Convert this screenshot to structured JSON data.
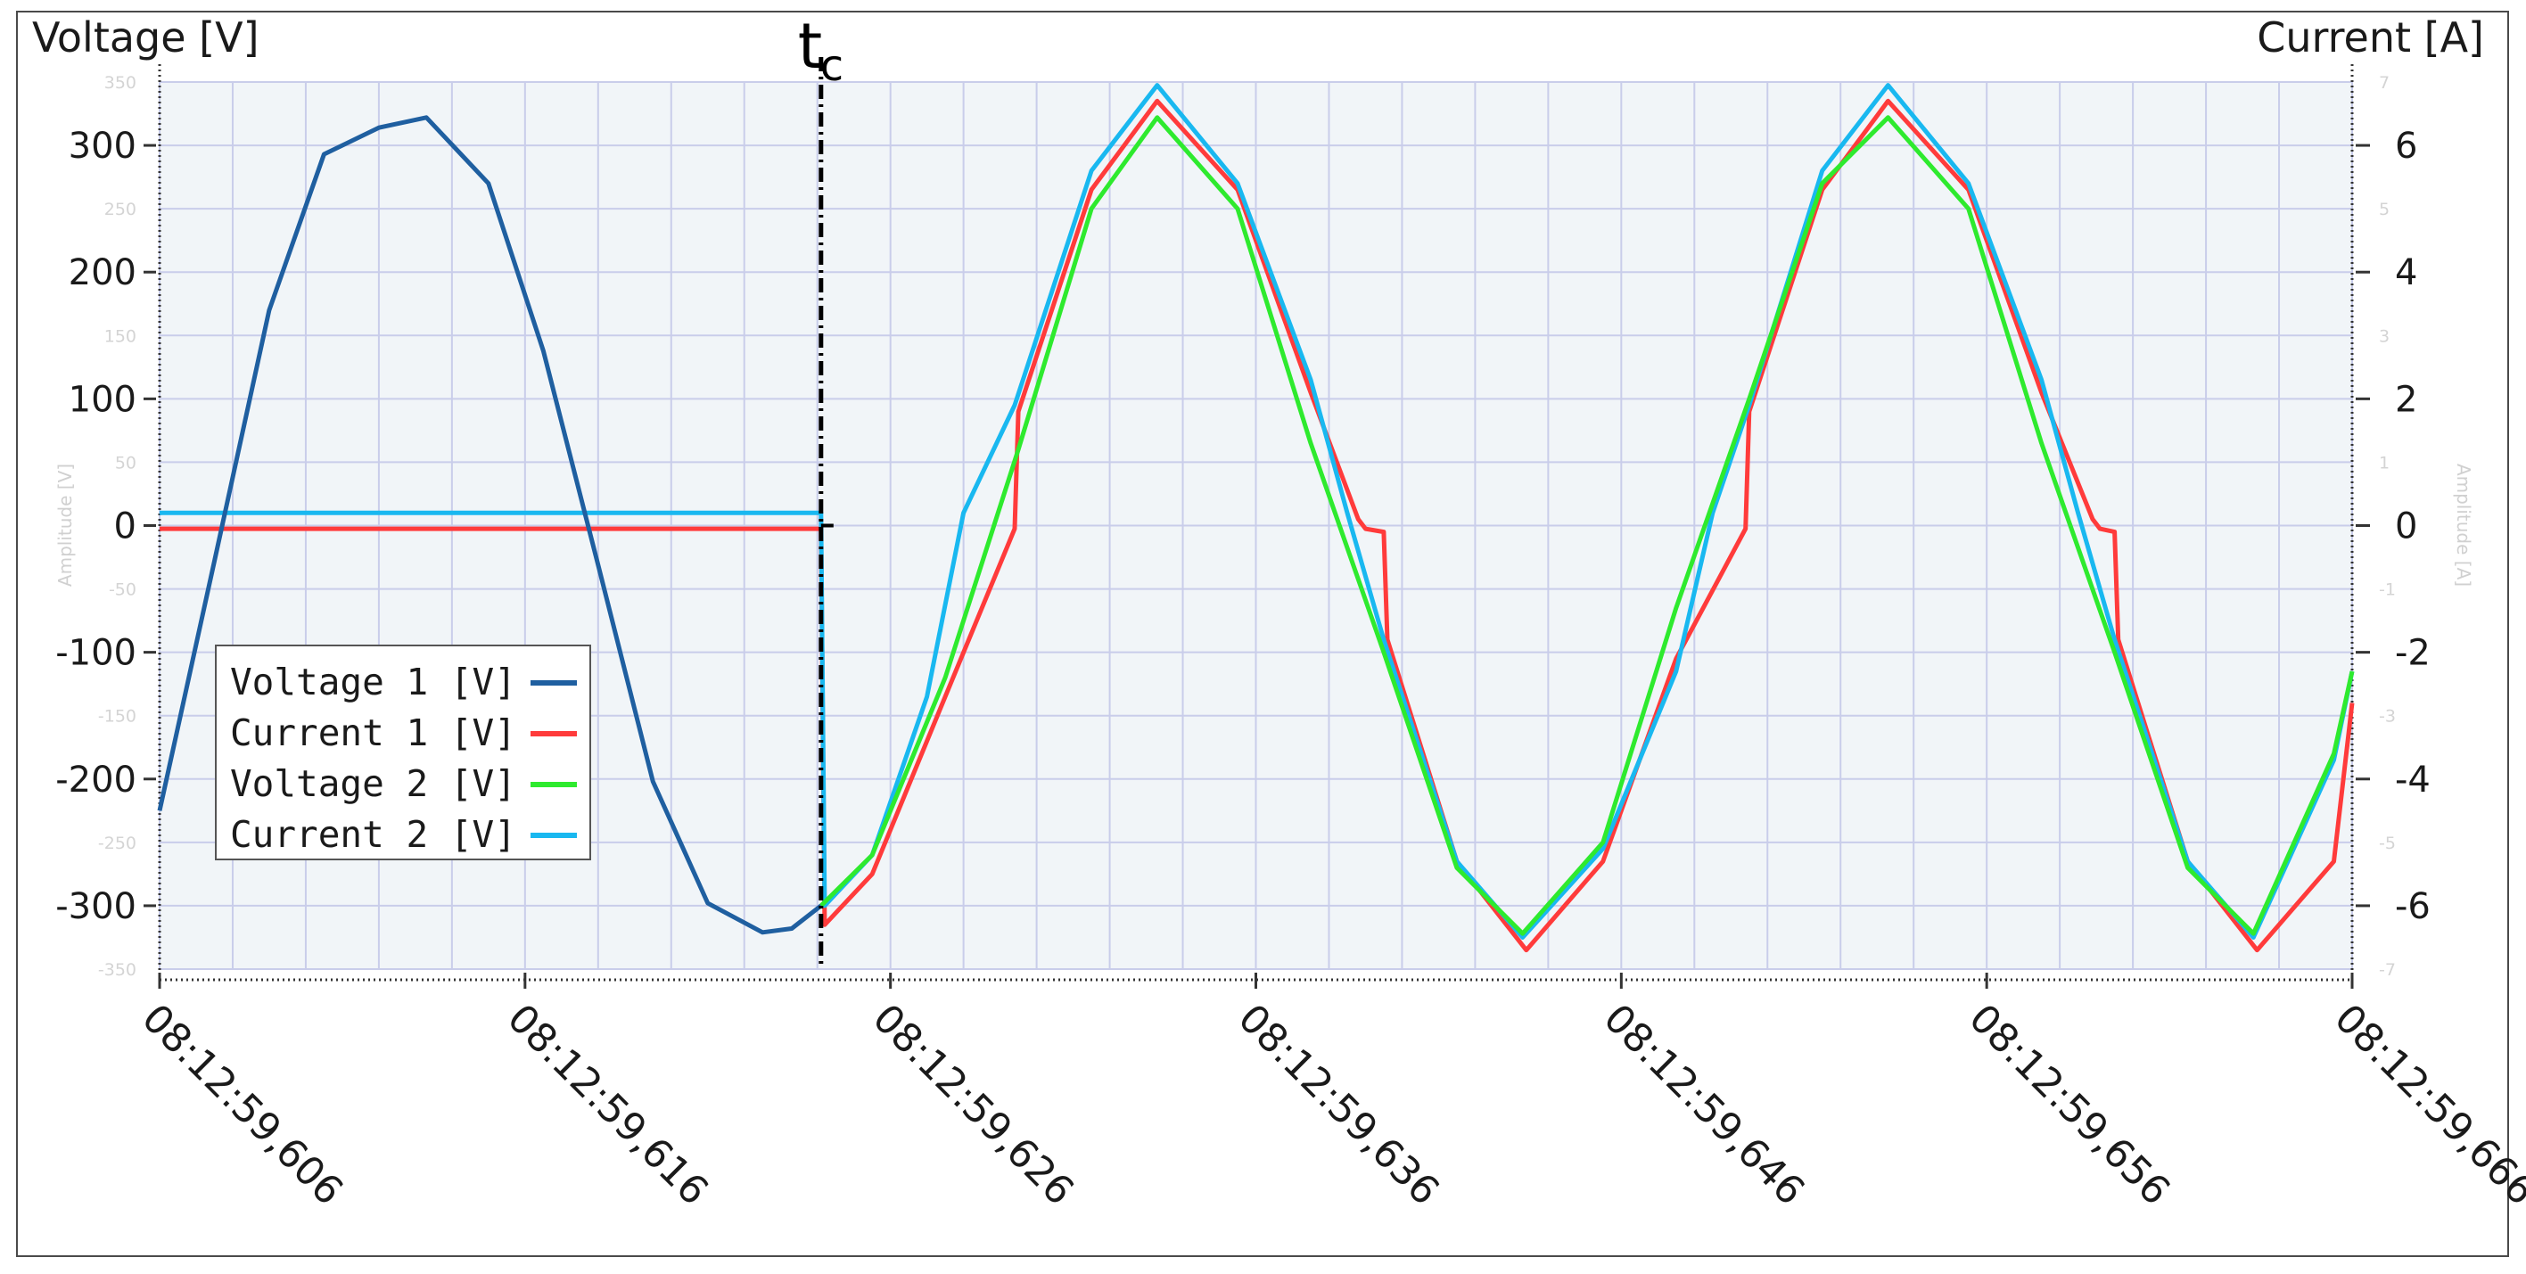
{
  "chart_data": {
    "type": "line",
    "title": "",
    "y_left_label": "Voltage [V]",
    "y_right_label": "Current [A]",
    "y_left_faint_label": "Amplitude [V]",
    "y_right_faint_label": "Amplitude [A]",
    "ylim_left": [
      -350,
      350
    ],
    "ylim_right": [
      -7,
      7
    ],
    "xlim_ms": [
      0,
      60
    ],
    "x_tick_labels": [
      "08:12:59,606",
      "08:12:59,616",
      "08:12:59,626",
      "08:12:59,636",
      "08:12:59,646",
      "08:12:59,656",
      "08:12:59,666"
    ],
    "y_left_major_labels": [
      "300",
      "200",
      "100",
      "0",
      "-100",
      "-200",
      "-300"
    ],
    "y_left_minor_labels": [
      "350",
      "250",
      "150",
      "50",
      "-50",
      "-150",
      "-250",
      "-350"
    ],
    "y_right_major_labels": [
      "6",
      "4",
      "2",
      "0",
      "-2",
      "-4",
      "-6"
    ],
    "y_right_minor_labels": [
      "7",
      "5",
      "3",
      "1",
      "-1",
      "-3",
      "-5",
      "-7"
    ],
    "grid": true,
    "legend_position": "lower-left",
    "annotation": {
      "label": "t",
      "subscript": "c",
      "x_ms": 18.1
    },
    "series": [
      {
        "name": "Voltage 1 [V]",
        "color": "#1f5fa0",
        "axis": "left",
        "x_ms": [
          0,
          1.5,
          3,
          4.5,
          6,
          7.3,
          9,
          10.5,
          12,
          13.5,
          15,
          16.5,
          17.3,
          18.1
        ],
        "values": [
          -225,
          -28,
          170,
          293,
          314,
          322,
          270,
          138,
          -31,
          -202,
          -298,
          -321,
          -318,
          -300
        ]
      },
      {
        "name": "Current 1 [V]",
        "color": "#ff3b3b",
        "axis": "right",
        "x_ms": [
          0,
          18.1,
          18.2,
          19.5,
          21.5,
          23.4,
          23.5,
          25.5,
          27.3,
          29.5,
          31.5,
          32.8,
          33,
          33.5,
          33.6,
          35.5,
          37.4,
          39.5,
          41.5,
          43.4,
          43.5,
          45.5,
          47.3,
          49.5,
          51.5,
          52.9,
          53.1,
          53.5,
          53.6,
          55.5,
          57.4,
          59.5,
          60
        ],
        "values": [
          -0.05,
          -0.05,
          -6.3,
          -5.5,
          -2.7,
          -0.05,
          1.8,
          5.3,
          6.7,
          5.3,
          2.1,
          0.1,
          -0.05,
          -0.1,
          -1.8,
          -5.3,
          -6.7,
          -5.3,
          -2.1,
          -0.05,
          1.8,
          5.3,
          6.7,
          5.3,
          2.1,
          0.1,
          -0.05,
          -0.1,
          -1.8,
          -5.3,
          -6.7,
          -5.3,
          -2.8
        ]
      },
      {
        "name": "Voltage 2 [V]",
        "color": "#2eea2e",
        "axis": "left",
        "x_ms": [
          18.1,
          19.5,
          21.5,
          23.5,
          25.5,
          27.3,
          29.5,
          31.5,
          33.5,
          35.5,
          37.3,
          39.5,
          41.5,
          43.5,
          45.5,
          47.3,
          49.5,
          51.5,
          53.5,
          55.5,
          57.3,
          59.5,
          60
        ],
        "values": [
          -300,
          -260,
          -120,
          60,
          250,
          322,
          250,
          65,
          -100,
          -270,
          -322,
          -250,
          -65,
          100,
          270,
          322,
          250,
          65,
          -100,
          -270,
          -322,
          -180,
          -115
        ]
      },
      {
        "name": "Current 2 [V]",
        "color": "#19b8f0",
        "axis": "right",
        "x_ms": [
          0,
          18.1,
          18.2,
          19.5,
          21,
          22,
          23.4,
          25.5,
          27.3,
          29.5,
          31.5,
          32.5,
          33.5,
          35.5,
          37.3,
          39.5,
          41.5,
          42.5,
          43.5,
          45.5,
          47.3,
          49.5,
          51.5,
          52.5,
          53.5,
          55.5,
          57.3,
          59.5,
          60
        ],
        "values": [
          0.2,
          0.2,
          -6,
          -5.2,
          -2.7,
          0.2,
          1.9,
          5.6,
          6.95,
          5.4,
          2.3,
          0.2,
          -1.8,
          -5.3,
          -6.5,
          -5.1,
          -2.3,
          0.2,
          1.9,
          5.6,
          6.95,
          5.4,
          2.3,
          0.2,
          -1.8,
          -5.3,
          -6.5,
          -3.7,
          -2.3
        ]
      }
    ]
  }
}
